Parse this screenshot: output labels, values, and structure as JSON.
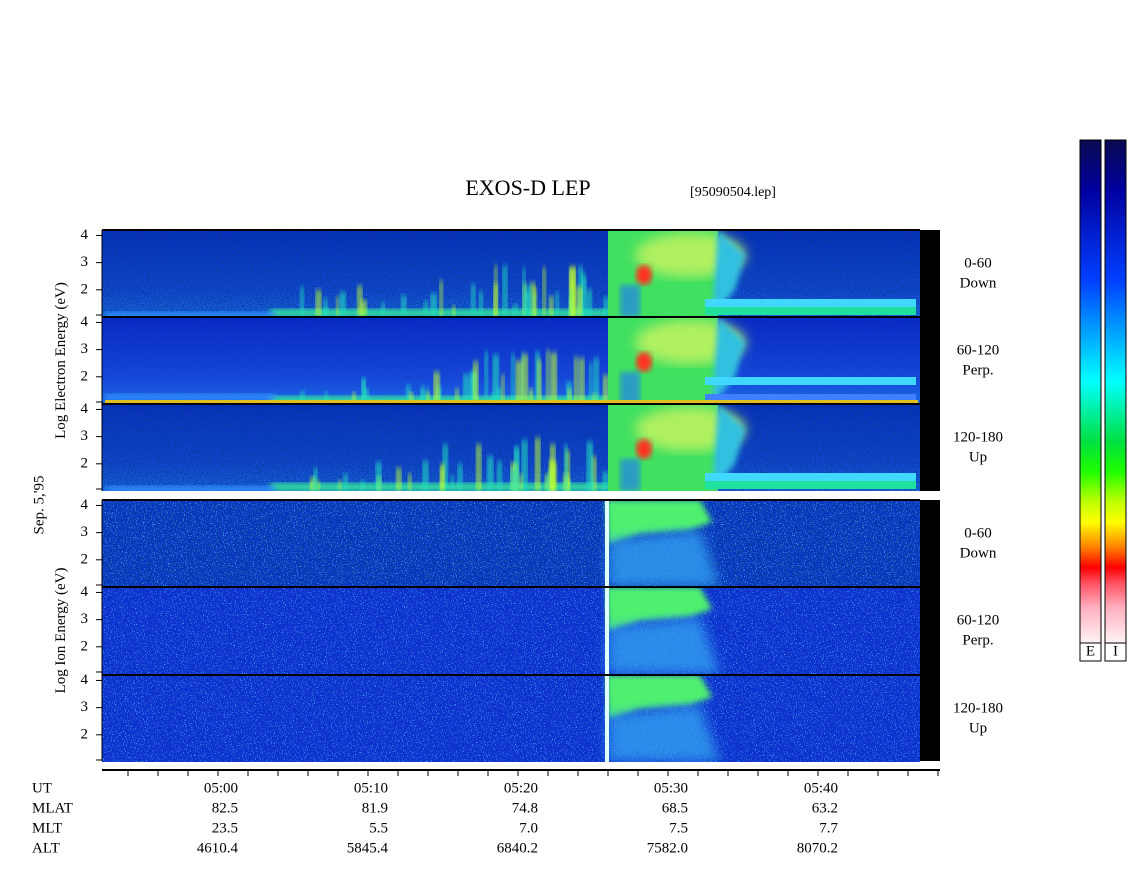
{
  "header": {
    "title": "EXOS-D LEP",
    "file": "[95090504.lep]"
  },
  "chart_data": {
    "type": "spectrogram",
    "date": "Sep. 5,'95",
    "ylim": [
      1,
      4.2
    ],
    "yticks": [
      2,
      3,
      4
    ],
    "groups": [
      {
        "ylabel": [
          "Log",
          "Electron",
          "Energy",
          "(eV)"
        ],
        "species": "electron",
        "panels": [
          {
            "lines": [
              "0-60",
              "Down"
            ]
          },
          {
            "lines": [
              "60-120",
              "Perp."
            ]
          },
          {
            "lines": [
              "120-180",
              "Up"
            ]
          }
        ]
      },
      {
        "ylabel": [
          "Log",
          "Ion",
          "Energy",
          "(eV)"
        ],
        "species": "ion",
        "panels": [
          {
            "lines": [
              "0-60",
              "Down"
            ]
          },
          {
            "lines": [
              "60-120",
              "Perp."
            ]
          },
          {
            "lines": [
              "120-180",
              "Up"
            ]
          }
        ]
      }
    ],
    "position_table": {
      "rows": [
        {
          "label": "UT",
          "values": [
            "05:00",
            "05:10",
            "05:20",
            "05:30",
            "05:40"
          ]
        },
        {
          "label": "MLAT",
          "values": [
            82.5,
            81.9,
            74.8,
            68.5,
            63.2
          ]
        },
        {
          "label": "MLT",
          "values": [
            23.5,
            5.5,
            {
              "value": 7,
              "label": "7.0"
            },
            7.5,
            7.7
          ]
        },
        {
          "label": "ALT",
          "values": [
            4610.4,
            5845.4,
            6840.2,
            {
              "value": 7582,
              "label": "7582.0"
            },
            8070.2
          ]
        }
      ]
    },
    "colorbar_labels": [
      "E",
      "I"
    ]
  }
}
